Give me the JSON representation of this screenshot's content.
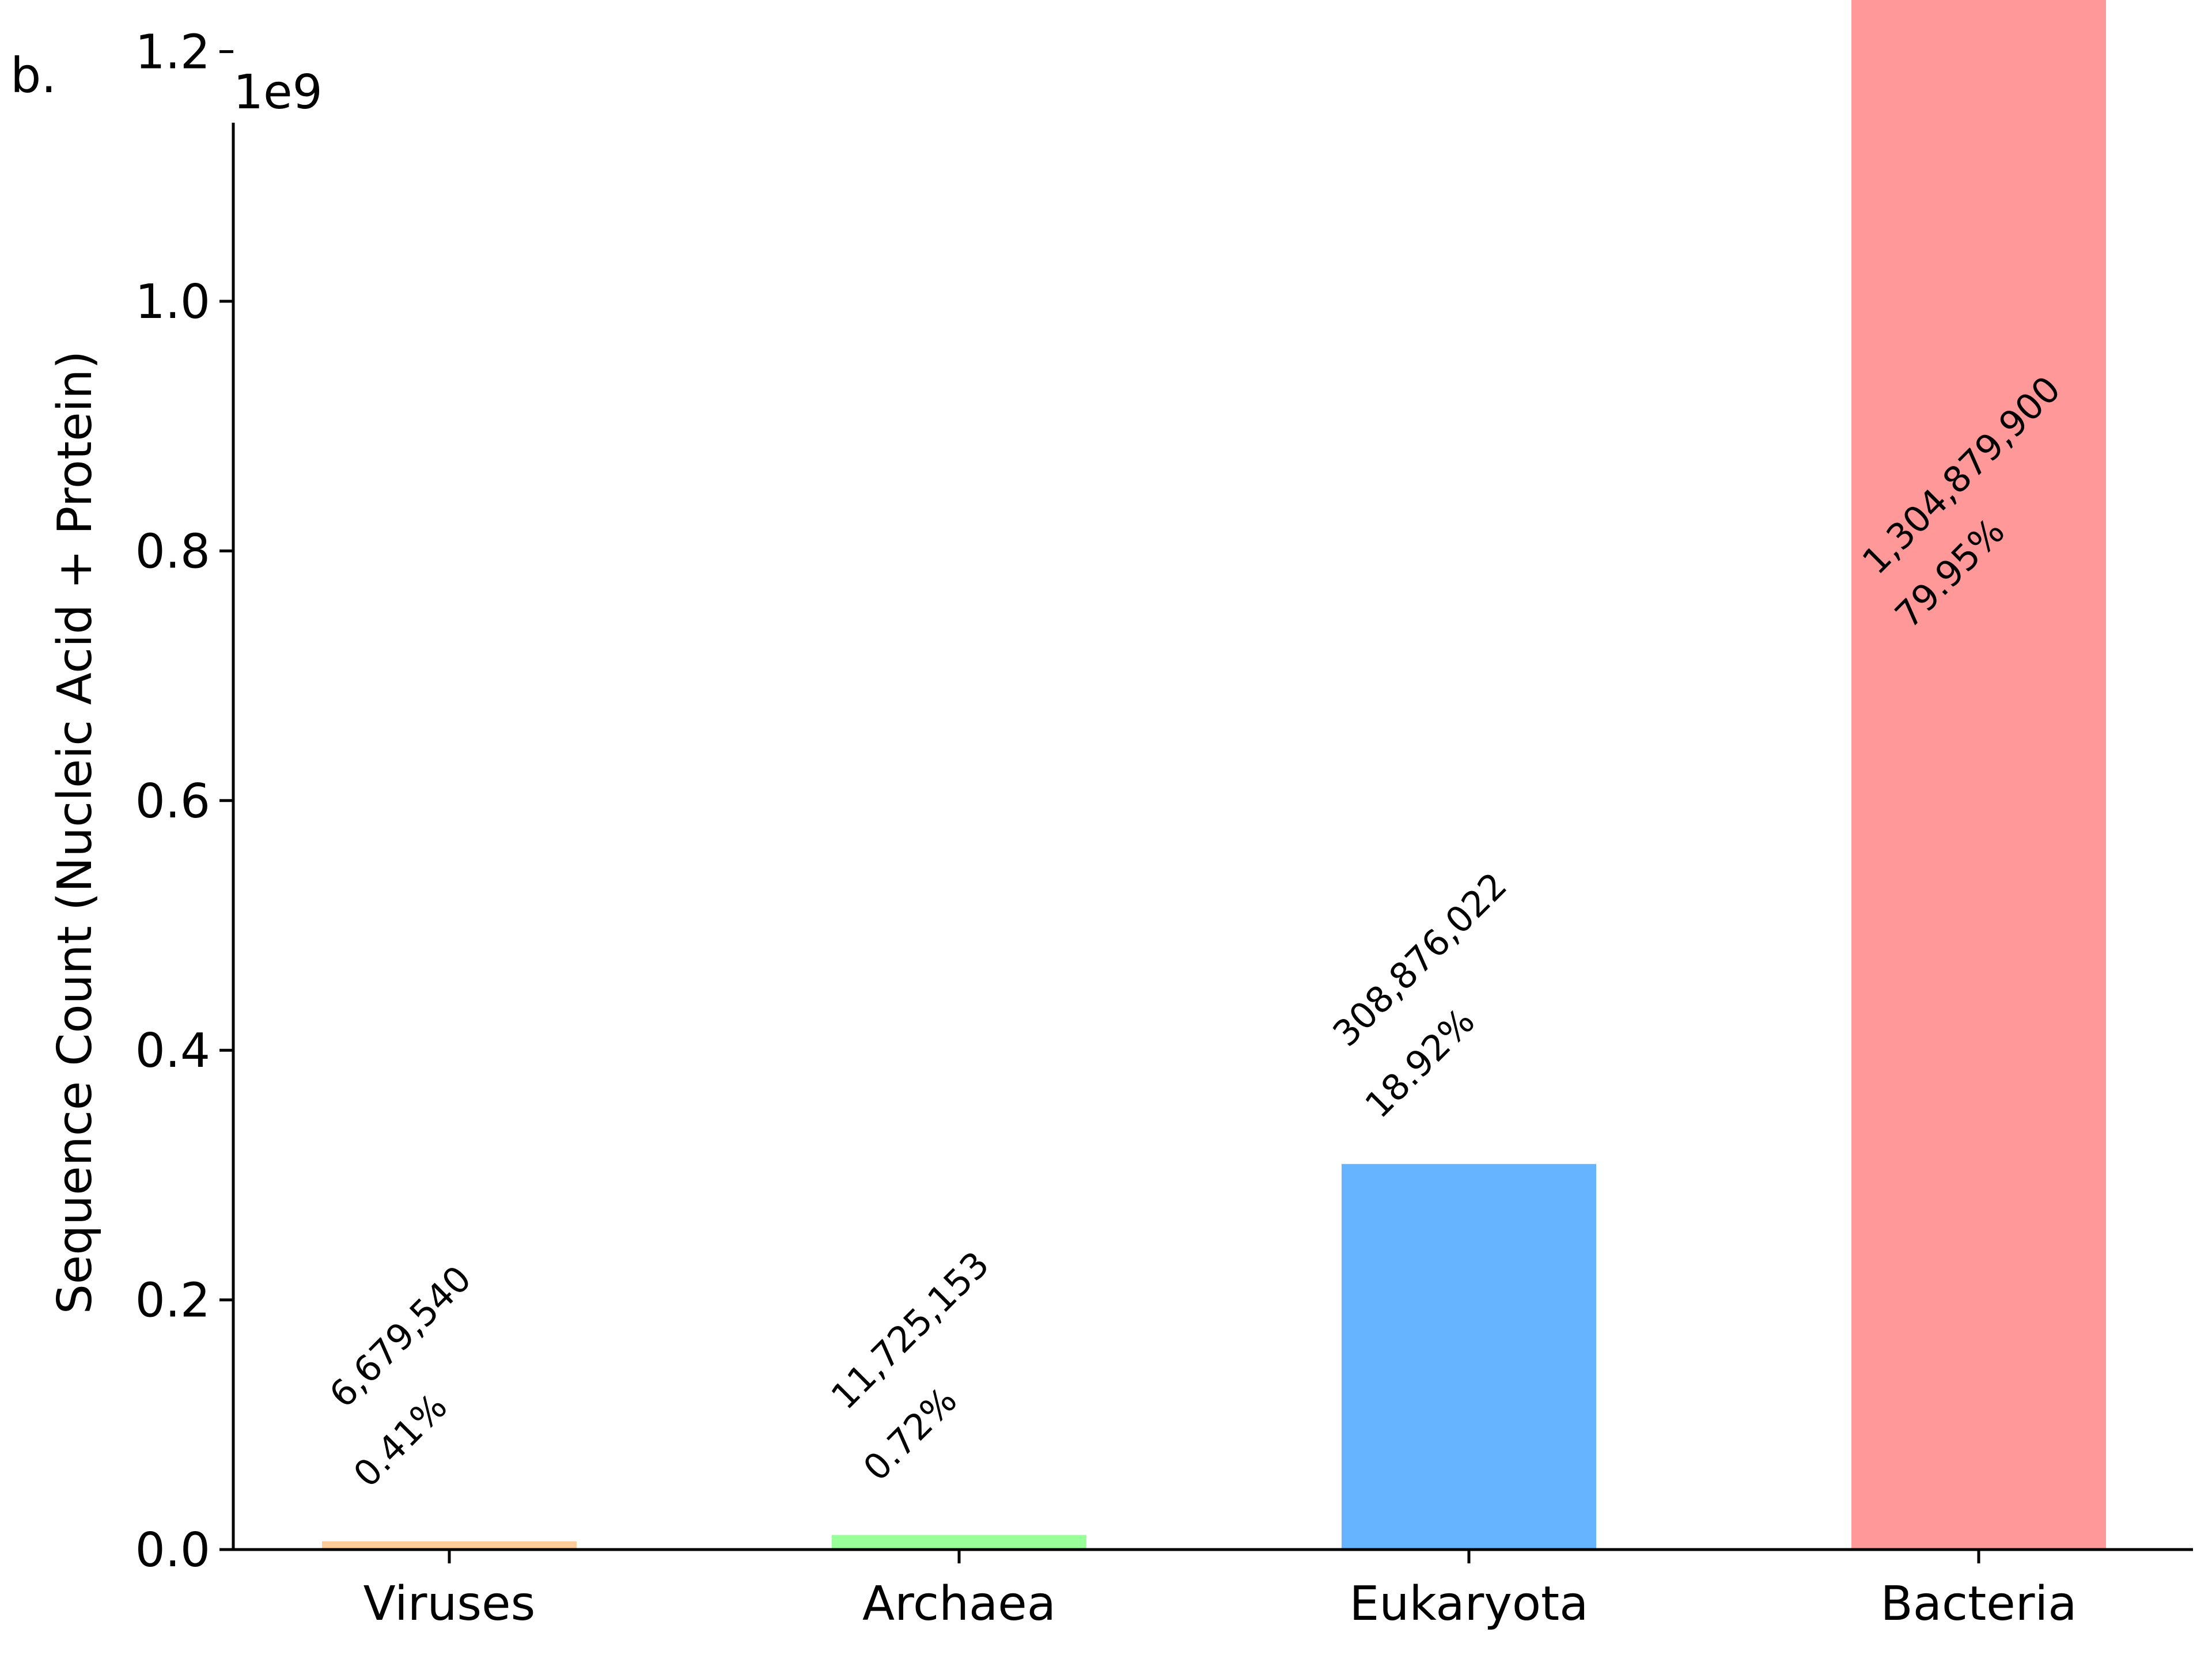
{
  "panel_label": "b.",
  "chart_data": {
    "type": "bar",
    "categories": [
      "Viruses",
      "Archaea",
      "Eukaryota",
      "Bacteria"
    ],
    "values": [
      6679540,
      11725153,
      308876022,
      1304879900
    ],
    "value_labels": [
      "6,679,540",
      "11,725,153",
      "308,876,022",
      "1,304,879,900"
    ],
    "percent_labels": [
      "0.41%",
      "0.72%",
      "18.92%",
      "79.95%"
    ],
    "colors": [
      "#ffcc99",
      "#99ff99",
      "#66b3ff",
      "#ff9999"
    ],
    "ylabel": "Sequence Count (Nucleic Acid + Protein)",
    "xlabel": "",
    "y_offset_label": "1e9",
    "ylim": [
      0,
      1370000000
    ],
    "y_ticks": [
      0,
      200000000,
      400000000,
      600000000,
      800000000,
      1000000000,
      1200000000
    ],
    "y_tick_labels": [
      "0.0",
      "0.2",
      "0.4",
      "0.6",
      "0.8",
      "1.0",
      "1.2"
    ],
    "grid": false,
    "legend": "none"
  }
}
